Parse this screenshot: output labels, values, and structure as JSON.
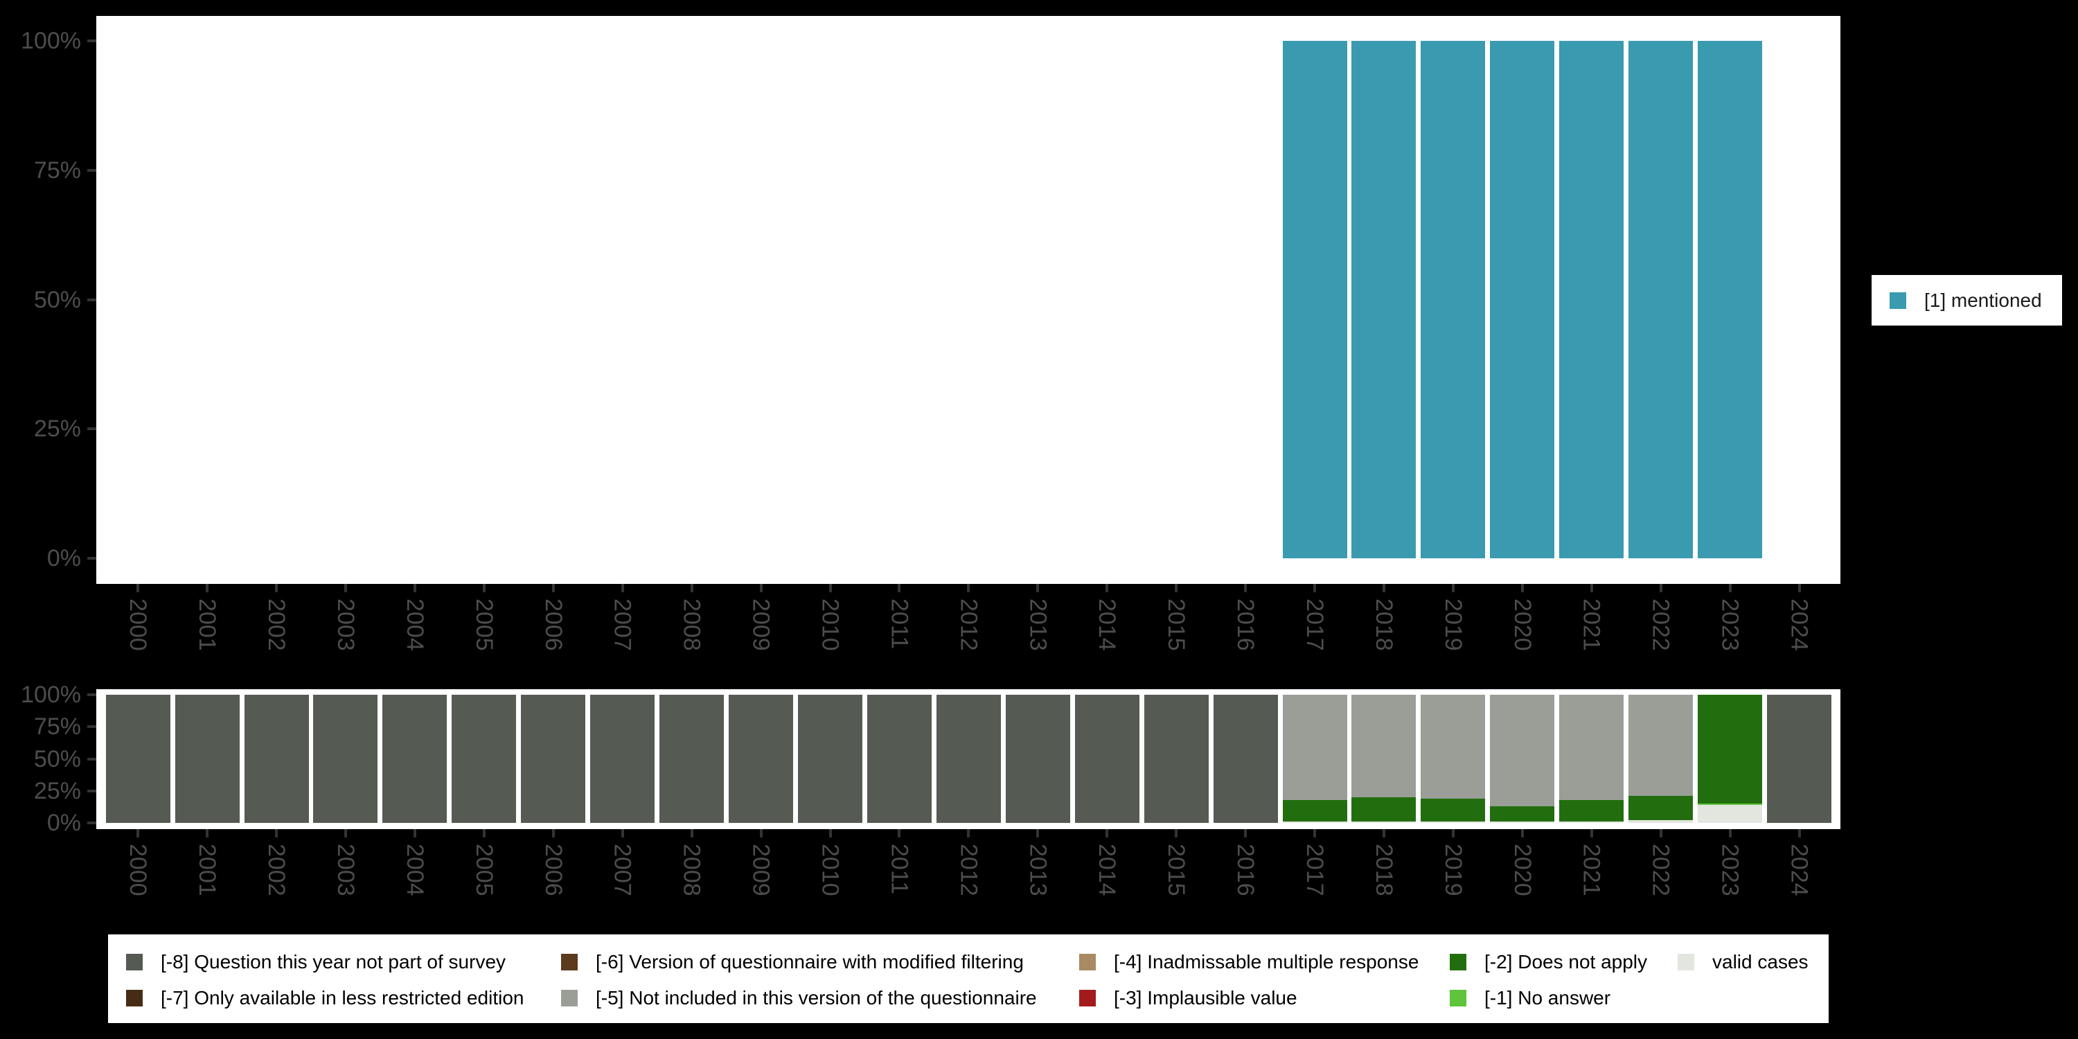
{
  "colors": {
    "background": "#000000",
    "plot_background": "#ffffff",
    "axis_text": "#4d4d4d",
    "tick": "#333333"
  },
  "right_legend": {
    "label": "[1] mentioned",
    "color": "#3a9ab0",
    "key": "mentioned"
  },
  "bottom_legend": {
    "columns": [
      {
        "entries": [
          {
            "key": "not-part-of-survey",
            "label": "[-8] Question this year not part of survey",
            "color": "#555a52"
          },
          {
            "key": "less-restricted",
            "label": "[-7] Only available in less restricted edition",
            "color": "#472c15"
          }
        ]
      },
      {
        "entries": [
          {
            "key": "modified-filtering",
            "label": "[-6] Version of questionnaire with modified filtering",
            "color": "#5c3a1e"
          },
          {
            "key": "not-included",
            "label": "[-5] Not included in this version of the questionnaire",
            "color": "#9a9e97"
          }
        ]
      },
      {
        "entries": [
          {
            "key": "inadmissable",
            "label": "[-4] Inadmissable multiple response",
            "color": "#a98a62"
          },
          {
            "key": "implausible",
            "label": "[-3] Implausible value",
            "color": "#a31b1b"
          }
        ]
      },
      {
        "entries": [
          {
            "key": "does-not-apply",
            "label": "[-2] Does not apply",
            "color": "#226e0f"
          },
          {
            "key": "no-answer",
            "label": "[-1] No answer",
            "color": "#5dc43b"
          }
        ]
      },
      {
        "entries": [
          {
            "key": "valid",
            "label": "valid cases",
            "color": "#e2e6df"
          }
        ]
      }
    ]
  },
  "chart_data": [
    {
      "type": "bar",
      "title": "",
      "xlabel": "",
      "ylabel": "",
      "ylim": [
        0,
        100
      ],
      "yticks": [
        "0%",
        "25%",
        "50%",
        "75%",
        "100%"
      ],
      "grid": false,
      "legend_position": "right",
      "categories": [
        "2000",
        "2001",
        "2002",
        "2003",
        "2004",
        "2005",
        "2006",
        "2007",
        "2008",
        "2009",
        "2010",
        "2011",
        "2012",
        "2013",
        "2014",
        "2015",
        "2016",
        "2017",
        "2018",
        "2019",
        "2020",
        "2021",
        "2022",
        "2023",
        "2024"
      ],
      "series": [
        {
          "name": "[1] mentioned",
          "key": "mentioned",
          "color": "#3a9ab0",
          "values": [
            0,
            0,
            0,
            0,
            0,
            0,
            0,
            0,
            0,
            0,
            0,
            0,
            0,
            0,
            0,
            0,
            0,
            100,
            100,
            100,
            100,
            100,
            100,
            100,
            0
          ]
        }
      ]
    },
    {
      "type": "stacked_bar",
      "title": "",
      "xlabel": "",
      "ylabel": "",
      "ylim": [
        0,
        100
      ],
      "yticks": [
        "0%",
        "25%",
        "50%",
        "75%",
        "100%"
      ],
      "grid": false,
      "legend_position": "bottom",
      "stacking": "series listed bottom-to-top",
      "categories": [
        "2000",
        "2001",
        "2002",
        "2003",
        "2004",
        "2005",
        "2006",
        "2007",
        "2008",
        "2009",
        "2010",
        "2011",
        "2012",
        "2013",
        "2014",
        "2015",
        "2016",
        "2017",
        "2018",
        "2019",
        "2020",
        "2021",
        "2022",
        "2023",
        "2024"
      ],
      "series": [
        {
          "name": "valid cases",
          "key": "valid",
          "color": "#e2e6df",
          "values": [
            0,
            0,
            0,
            0,
            0,
            0,
            0,
            0,
            0,
            0,
            0,
            0,
            0,
            0,
            0,
            0,
            0,
            1,
            1,
            1,
            1,
            1,
            2,
            14,
            0
          ]
        },
        {
          "name": "[-1] No answer",
          "key": "no-answer",
          "color": "#5dc43b",
          "values": [
            0,
            0,
            0,
            0,
            0,
            0,
            0,
            0,
            0,
            0,
            0,
            0,
            0,
            0,
            0,
            0,
            0,
            0,
            0,
            0,
            0,
            0,
            0,
            1,
            0
          ]
        },
        {
          "name": "[-2] Does not apply",
          "key": "does-not-apply",
          "color": "#226e0f",
          "values": [
            0,
            0,
            0,
            0,
            0,
            0,
            0,
            0,
            0,
            0,
            0,
            0,
            0,
            0,
            0,
            0,
            0,
            17,
            19,
            18,
            12,
            17,
            19,
            85,
            0
          ]
        },
        {
          "name": "[-3] Implausible value",
          "key": "implausible",
          "color": "#a31b1b",
          "values": [
            0,
            0,
            0,
            0,
            0,
            0,
            0,
            0,
            0,
            0,
            0,
            0,
            0,
            0,
            0,
            0,
            0,
            0,
            0,
            0,
            0,
            0,
            0,
            0,
            0
          ]
        },
        {
          "name": "[-4] Inadmissable multiple response",
          "key": "inadmissable",
          "color": "#a98a62",
          "values": [
            0,
            0,
            0,
            0,
            0,
            0,
            0,
            0,
            0,
            0,
            0,
            0,
            0,
            0,
            0,
            0,
            0,
            0,
            0,
            0,
            0,
            0,
            0,
            0,
            0
          ]
        },
        {
          "name": "[-5] Not included in this version of the questionnaire",
          "key": "not-included",
          "color": "#9a9e97",
          "values": [
            0,
            0,
            0,
            0,
            0,
            0,
            0,
            0,
            0,
            0,
            0,
            0,
            0,
            0,
            0,
            0,
            0,
            82,
            80,
            81,
            87,
            82,
            79,
            0,
            0
          ]
        },
        {
          "name": "[-6] Version of questionnaire with modified filtering",
          "key": "modified-filtering",
          "color": "#5c3a1e",
          "values": [
            0,
            0,
            0,
            0,
            0,
            0,
            0,
            0,
            0,
            0,
            0,
            0,
            0,
            0,
            0,
            0,
            0,
            0,
            0,
            0,
            0,
            0,
            0,
            0,
            0
          ]
        },
        {
          "name": "[-7] Only available in less restricted edition",
          "key": "less-restricted",
          "color": "#472c15",
          "values": [
            0,
            0,
            0,
            0,
            0,
            0,
            0,
            0,
            0,
            0,
            0,
            0,
            0,
            0,
            0,
            0,
            0,
            0,
            0,
            0,
            0,
            0,
            0,
            0,
            0
          ]
        },
        {
          "name": "[-8] Question this year not part of survey",
          "key": "not-part-of-survey",
          "color": "#555a52",
          "values": [
            100,
            100,
            100,
            100,
            100,
            100,
            100,
            100,
            100,
            100,
            100,
            100,
            100,
            100,
            100,
            100,
            100,
            0,
            0,
            0,
            0,
            0,
            0,
            0,
            100
          ]
        }
      ]
    }
  ]
}
